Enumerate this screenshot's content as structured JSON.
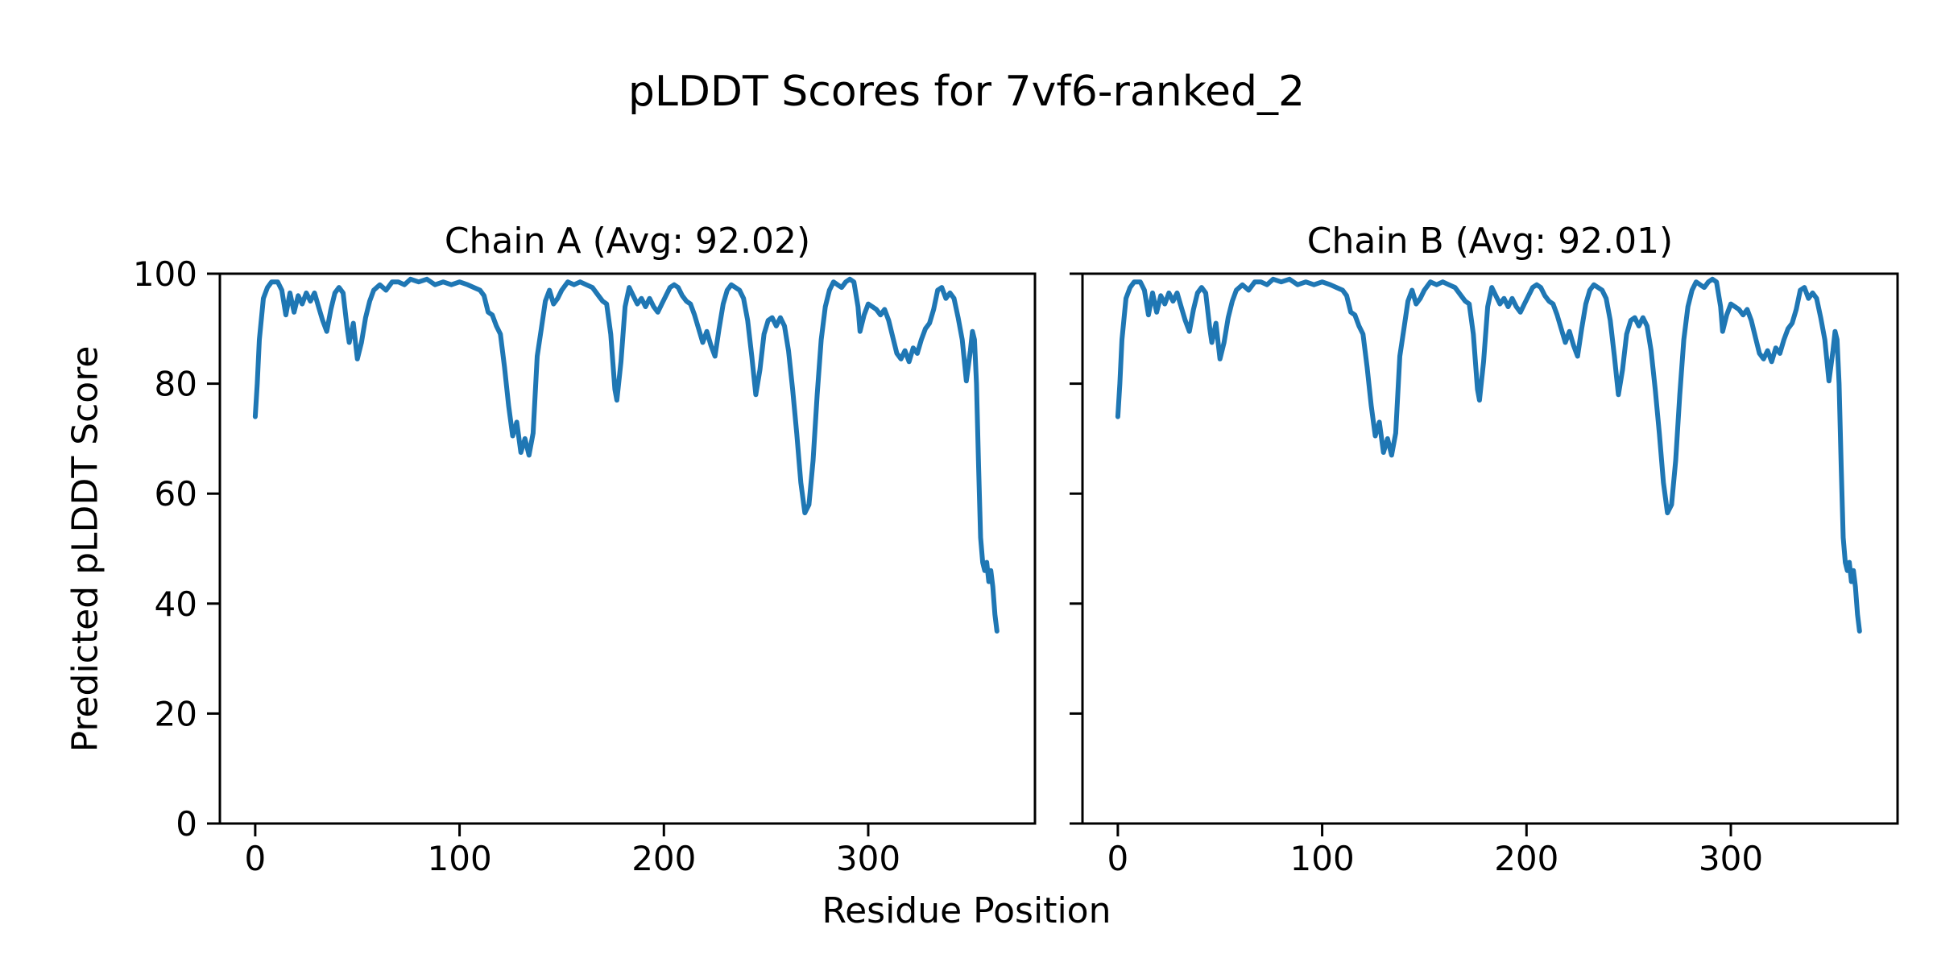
{
  "figure": {
    "background_color": "#ffffff",
    "text_color": "#000000"
  },
  "chart_data": {
    "type": "line",
    "suptitle": "pLDDT Scores for 7vf6-ranked_2",
    "xlabel": "Residue Position",
    "ylabel": "Predicted pLDDT Score",
    "xlim": [
      -17.3,
      381.6
    ],
    "ylim": [
      0,
      100
    ],
    "xticks": [
      0,
      100,
      200,
      300
    ],
    "yticks": [
      0,
      20,
      40,
      60,
      80,
      100
    ],
    "grid": false,
    "legend": "none",
    "line_color": "#1f77b4",
    "spine_color": "#000000",
    "subplots": [
      {
        "title": "Chain A (Avg: 92.02)",
        "avg": 92.02,
        "series_index": 0
      },
      {
        "title": "Chain B (Avg: 92.01)",
        "avg": 92.01,
        "series_index": 1
      }
    ],
    "x": [
      0,
      1,
      2,
      4,
      6,
      8,
      11,
      13,
      15,
      17,
      19,
      21,
      23,
      25,
      27,
      29,
      31,
      33,
      35,
      37,
      39,
      41,
      43,
      45,
      46,
      48,
      50,
      52,
      54,
      56,
      58,
      61,
      64,
      67,
      70,
      73,
      76,
      80,
      84,
      88,
      92,
      96,
      100,
      104,
      107,
      110,
      112,
      114,
      116,
      118,
      120,
      122,
      124,
      126,
      128,
      130,
      132,
      134,
      136,
      138,
      140,
      142,
      144,
      146,
      148,
      150,
      153,
      156,
      159,
      162,
      165,
      168,
      170,
      172,
      174,
      176,
      177,
      179,
      181,
      183,
      185,
      187,
      189,
      191,
      193,
      195,
      197,
      199,
      201,
      203,
      205,
      207,
      209,
      211,
      213,
      215,
      217,
      219,
      221,
      223,
      225,
      227,
      229,
      231,
      233,
      235,
      237,
      239,
      241,
      243,
      245,
      247,
      249,
      251,
      253,
      255,
      257,
      259,
      261,
      263,
      265,
      267,
      269,
      271,
      273,
      275,
      277,
      279,
      281,
      283,
      285,
      287,
      289,
      291,
      293,
      295,
      296,
      298,
      300,
      302,
      304,
      306,
      308,
      310,
      312,
      314,
      316,
      318,
      320,
      322,
      324,
      326,
      328,
      330,
      332,
      334,
      336,
      338,
      340,
      342,
      344,
      346,
      348,
      350,
      351,
      352,
      353,
      354,
      355,
      356,
      357,
      358,
      359,
      360,
      361,
      362,
      363
    ],
    "series": [
      {
        "name": "Chain A",
        "values": [
          74,
          80,
          88,
          95.5,
          97.5,
          98.5,
          98.5,
          97,
          92.5,
          96.5,
          93,
          96,
          94.5,
          96.5,
          95,
          96.5,
          94,
          91.5,
          89.5,
          93.5,
          96.5,
          97.5,
          96.5,
          90,
          87.5,
          91,
          84.5,
          87.5,
          92,
          95,
          97,
          98,
          97,
          98.5,
          98.5,
          98,
          99,
          98.5,
          99,
          98,
          98.5,
          98,
          98.5,
          98,
          97.5,
          97,
          96,
          93,
          92.5,
          90.5,
          89,
          83,
          76,
          70.5,
          73,
          67.5,
          70,
          67,
          71,
          85,
          90,
          95,
          97,
          94.5,
          95.5,
          97,
          98.5,
          98,
          98.5,
          98,
          97.5,
          96,
          95,
          94.5,
          89,
          79,
          77,
          84,
          94,
          97.5,
          96,
          94.5,
          95.5,
          94,
          95.5,
          94,
          93,
          94.5,
          96,
          97.5,
          98,
          97.5,
          96,
          95,
          94.5,
          92.5,
          90,
          87.5,
          89.5,
          87,
          85,
          90,
          94.5,
          97,
          98,
          97.5,
          97,
          95.5,
          91.5,
          85,
          78,
          82.5,
          89,
          91.5,
          92,
          90.5,
          92,
          90.5,
          86,
          79,
          71,
          62,
          56.5,
          58,
          66,
          78,
          88,
          94,
          97,
          98.5,
          98,
          97.5,
          98.5,
          99,
          98.5,
          94,
          89.5,
          92.5,
          94.5,
          94,
          93.5,
          92.5,
          93.5,
          91.5,
          88.5,
          85.5,
          84.5,
          86,
          84,
          86.5,
          85.5,
          88,
          90,
          91,
          93.5,
          97,
          97.5,
          95.5,
          96.5,
          95.5,
          92,
          88,
          80.5,
          86,
          89.5,
          88,
          80,
          65,
          52,
          47.5,
          46,
          47.5,
          44,
          46,
          43,
          38,
          35
        ]
      },
      {
        "name": "Chain B",
        "values": [
          74,
          80,
          88,
          95.5,
          97.5,
          98.5,
          98.5,
          97,
          92.5,
          96.5,
          93,
          96,
          94.5,
          96.5,
          95,
          96.5,
          94,
          91.5,
          89.5,
          93.5,
          96.5,
          97.5,
          96.5,
          90,
          87.5,
          91,
          84.5,
          87.5,
          92,
          95,
          97,
          98,
          97,
          98.5,
          98.5,
          98,
          99,
          98.5,
          99,
          98,
          98.5,
          98,
          98.5,
          98,
          97.5,
          97,
          96,
          93,
          92.5,
          90.5,
          89,
          83,
          76,
          70.5,
          73,
          67.5,
          70,
          67,
          71,
          85,
          90,
          95,
          97,
          94.5,
          95.5,
          97,
          98.5,
          98,
          98.5,
          98,
          97.5,
          96,
          95,
          94.5,
          89,
          79,
          77,
          84,
          94,
          97.5,
          96,
          94.5,
          95.5,
          94,
          95.5,
          94,
          93,
          94.5,
          96,
          97.5,
          98,
          97.5,
          96,
          95,
          94.5,
          92.5,
          90,
          87.5,
          89.5,
          87,
          85,
          90,
          94.5,
          97,
          98,
          97.5,
          97,
          95.5,
          91.5,
          85,
          78,
          82.5,
          89,
          91.5,
          92,
          90.5,
          92,
          90.5,
          86,
          79,
          71,
          62,
          56.5,
          58,
          66,
          78,
          88,
          94,
          97,
          98.5,
          98,
          97.5,
          98.5,
          99,
          98.5,
          94,
          89.5,
          92.5,
          94.5,
          94,
          93.5,
          92.5,
          93.5,
          91.5,
          88.5,
          85.5,
          84.5,
          86,
          84,
          86.5,
          85.5,
          88,
          90,
          91,
          93.5,
          97,
          97.5,
          95.5,
          96.5,
          95.5,
          92,
          88,
          80.5,
          86,
          89.5,
          88,
          80,
          65,
          52,
          47.5,
          46,
          47.5,
          44,
          46,
          43,
          38,
          35
        ]
      }
    ]
  }
}
